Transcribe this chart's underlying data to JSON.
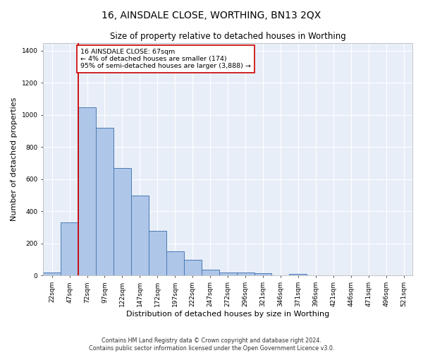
{
  "title": "16, AINSDALE CLOSE, WORTHING, BN13 2QX",
  "subtitle": "Size of property relative to detached houses in Worthing",
  "xlabel": "Distribution of detached houses by size in Worthing",
  "ylabel": "Number of detached properties",
  "categories": [
    "22sqm",
    "47sqm",
    "72sqm",
    "97sqm",
    "122sqm",
    "147sqm",
    "172sqm",
    "197sqm",
    "222sqm",
    "247sqm",
    "272sqm",
    "296sqm",
    "321sqm",
    "346sqm",
    "371sqm",
    "396sqm",
    "421sqm",
    "446sqm",
    "471sqm",
    "496sqm",
    "521sqm"
  ],
  "values": [
    20,
    330,
    1050,
    920,
    670,
    500,
    280,
    150,
    100,
    35,
    20,
    20,
    15,
    0,
    10,
    0,
    0,
    0,
    0,
    0,
    0
  ],
  "bar_color": "#aec6e8",
  "bar_edge_color": "#4a7ab5",
  "background_color": "#e8eef8",
  "grid_color": "#ffffff",
  "vline_color": "#cc0000",
  "vline_x_index": 1.5,
  "annotation_text": "16 AINSDALE CLOSE: 67sqm\n← 4% of detached houses are smaller (174)\n95% of semi-detached houses are larger (3,888) →",
  "annotation_box_color": "#ffffff",
  "annotation_box_edge": "#cc0000",
  "ylim": [
    0,
    1450
  ],
  "yticks": [
    0,
    200,
    400,
    600,
    800,
    1000,
    1200,
    1400
  ],
  "footer": "Contains HM Land Registry data © Crown copyright and database right 2024.\nContains public sector information licensed under the Open Government Licence v3.0.",
  "title_fontsize": 10,
  "subtitle_fontsize": 8.5,
  "xlabel_fontsize": 8,
  "ylabel_fontsize": 8,
  "tick_fontsize": 6.5,
  "footer_fontsize": 5.8
}
